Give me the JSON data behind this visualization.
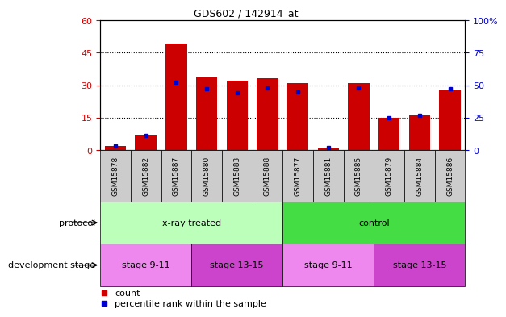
{
  "title": "GDS602 / 142914_at",
  "samples": [
    "GSM15878",
    "GSM15882",
    "GSM15887",
    "GSM15880",
    "GSM15883",
    "GSM15888",
    "GSM15877",
    "GSM15881",
    "GSM15885",
    "GSM15879",
    "GSM15884",
    "GSM15886"
  ],
  "count_values": [
    2,
    7,
    49,
    34,
    32,
    33,
    31,
    1,
    31,
    15,
    16,
    28
  ],
  "percentile_values": [
    3,
    11,
    52,
    47,
    44,
    48,
    45,
    2,
    48,
    25,
    27,
    47
  ],
  "ylim_left": [
    0,
    60
  ],
  "ylim_right": [
    0,
    100
  ],
  "yticks_left": [
    0,
    15,
    30,
    45,
    60
  ],
  "yticks_right": [
    0,
    25,
    50,
    75,
    100
  ],
  "bar_color": "#cc0000",
  "percentile_color": "#0000cc",
  "bg_color": "#ffffff",
  "tick_label_color_left": "#cc0000",
  "tick_label_color_right": "#0000cc",
  "xtick_bg_color": "#cccccc",
  "protocol_groups": [
    {
      "label": "x-ray treated",
      "start": 0,
      "end": 5,
      "color": "#bbffbb"
    },
    {
      "label": "control",
      "start": 6,
      "end": 11,
      "color": "#44dd44"
    }
  ],
  "stage_groups": [
    {
      "label": "stage 9-11",
      "start": 0,
      "end": 2,
      "color": "#ee88ee"
    },
    {
      "label": "stage 13-15",
      "start": 3,
      "end": 5,
      "color": "#cc44cc"
    },
    {
      "label": "stage 9-11",
      "start": 6,
      "end": 8,
      "color": "#ee88ee"
    },
    {
      "label": "stage 13-15",
      "start": 9,
      "end": 11,
      "color": "#cc44cc"
    }
  ],
  "legend_count_color": "#cc0000",
  "legend_percentile_color": "#0000cc",
  "legend_count_label": "count",
  "legend_percentile_label": "percentile rank within the sample",
  "row_label_protocol": "protocol",
  "row_label_stage": "development stage"
}
